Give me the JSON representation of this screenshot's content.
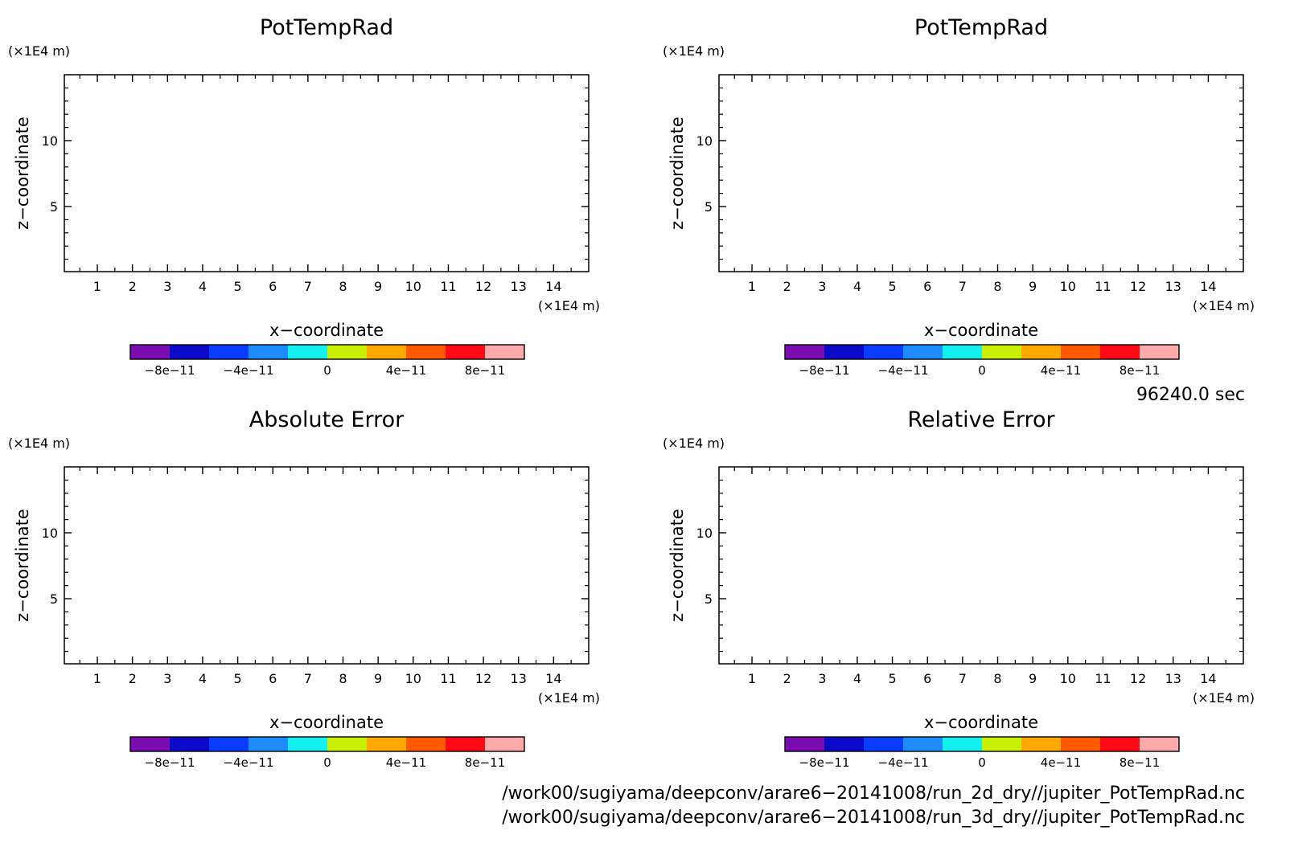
{
  "panels": [
    {
      "title": "PotTempRad",
      "xlabel": "x−coordinate",
      "ylabel": "z−coordinate",
      "x_unit": "(×1E4 m)",
      "y_unit": "(×1E4 m)"
    },
    {
      "title": "PotTempRad",
      "xlabel": "x−coordinate",
      "ylabel": "z−coordinate",
      "x_unit": "(×1E4 m)",
      "y_unit": "(×1E4 m)"
    },
    {
      "title": "Absolute Error",
      "xlabel": "x−coordinate",
      "ylabel": "z−coordinate",
      "x_unit": "(×1E4 m)",
      "y_unit": "(×1E4 m)"
    },
    {
      "title": "Relative Error",
      "xlabel": "x−coordinate",
      "ylabel": "z−coordinate",
      "x_unit": "(×1E4 m)",
      "y_unit": "(×1E4 m)"
    }
  ],
  "chart_data": [
    {
      "type": "heatmap",
      "title": "PotTempRad",
      "xlabel": "x−coordinate",
      "ylabel": "z−coordinate",
      "xlim": [
        0.06,
        15
      ],
      "ylim": [
        0.06,
        15
      ],
      "xticks": [
        1,
        2,
        3,
        4,
        5,
        6,
        7,
        8,
        9,
        10,
        11,
        12,
        13,
        14
      ],
      "yticks": [
        5,
        10
      ],
      "values": []
    },
    {
      "type": "heatmap",
      "title": "PotTempRad",
      "xlabel": "x−coordinate",
      "ylabel": "z−coordinate",
      "xlim": [
        0.06,
        15
      ],
      "ylim": [
        0.06,
        15
      ],
      "xticks": [
        1,
        2,
        3,
        4,
        5,
        6,
        7,
        8,
        9,
        10,
        11,
        12,
        13,
        14
      ],
      "yticks": [
        5,
        10
      ],
      "values": []
    },
    {
      "type": "heatmap",
      "title": "Absolute Error",
      "xlabel": "x−coordinate",
      "ylabel": "z−coordinate",
      "xlim": [
        0.06,
        15
      ],
      "ylim": [
        0.06,
        15
      ],
      "xticks": [
        1,
        2,
        3,
        4,
        5,
        6,
        7,
        8,
        9,
        10,
        11,
        12,
        13,
        14
      ],
      "yticks": [
        5,
        10
      ],
      "values": []
    },
    {
      "type": "heatmap",
      "title": "Relative Error",
      "xlabel": "x−coordinate",
      "ylabel": "z−coordinate",
      "xlim": [
        0.06,
        15
      ],
      "ylim": [
        0.06,
        15
      ],
      "xticks": [
        1,
        2,
        3,
        4,
        5,
        6,
        7,
        8,
        9,
        10,
        11,
        12,
        13,
        14
      ],
      "yticks": [
        5,
        10
      ],
      "values": []
    }
  ],
  "colorbar": {
    "range": [
      -1e-10,
      1e-10
    ],
    "colors": [
      "#7a0cb0",
      "#0a0ac8",
      "#0a3cff",
      "#1e8cff",
      "#14f0f0",
      "#c8f000",
      "#ffa800",
      "#ff5a00",
      "#ff0a14",
      "#ffaaaa"
    ],
    "ticks": [
      {
        "value": -8e-11,
        "label": "−8e−11"
      },
      {
        "value": -4e-11,
        "label": "−4e−11"
      },
      {
        "value": 0,
        "label": "0"
      },
      {
        "value": 4e-11,
        "label": "4e−11"
      },
      {
        "value": 8e-11,
        "label": "8e−11"
      }
    ]
  },
  "time_label": "96240.0 sec",
  "file_paths": [
    "/work00/sugiyama/deepconv/arare6−20141008/run_2d_dry//jupiter_PotTempRad.nc",
    "/work00/sugiyama/deepconv/arare6−20141008/run_3d_dry//jupiter_PotTempRad.nc"
  ]
}
